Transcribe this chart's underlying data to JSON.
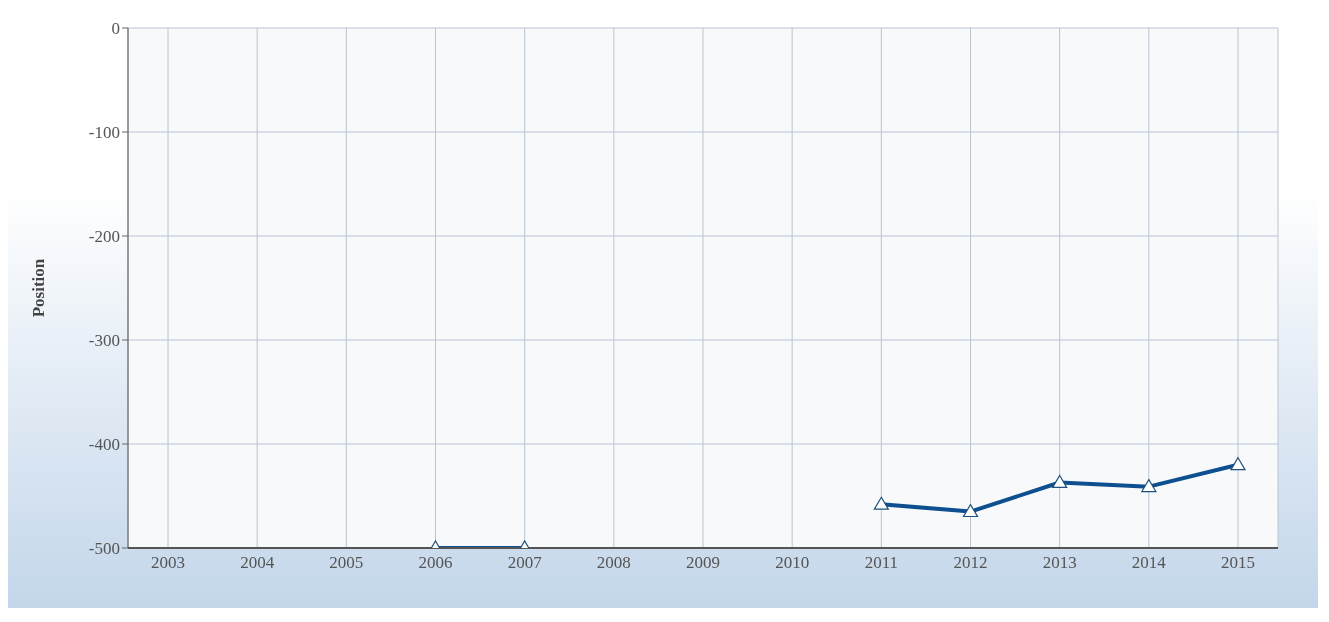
{
  "chart_data": {
    "type": "line",
    "ylabel": "Position",
    "categories": [
      "2003",
      "2004",
      "2005",
      "2006",
      "2007",
      "2008",
      "2009",
      "2010",
      "2011",
      "2012",
      "2013",
      "2014",
      "2015"
    ],
    "series": [
      {
        "color": "#0d4f8f",
        "values": [
          null,
          null,
          null,
          -500,
          -500,
          null,
          null,
          null,
          -458,
          -465,
          -437,
          -441,
          -420
        ]
      }
    ],
    "ylim": [
      -500,
      0
    ],
    "yticks": [
      -500,
      -400,
      -300,
      -200,
      -100,
      0
    ],
    "grid": true,
    "marker": "triangle",
    "line_style": "solid"
  }
}
